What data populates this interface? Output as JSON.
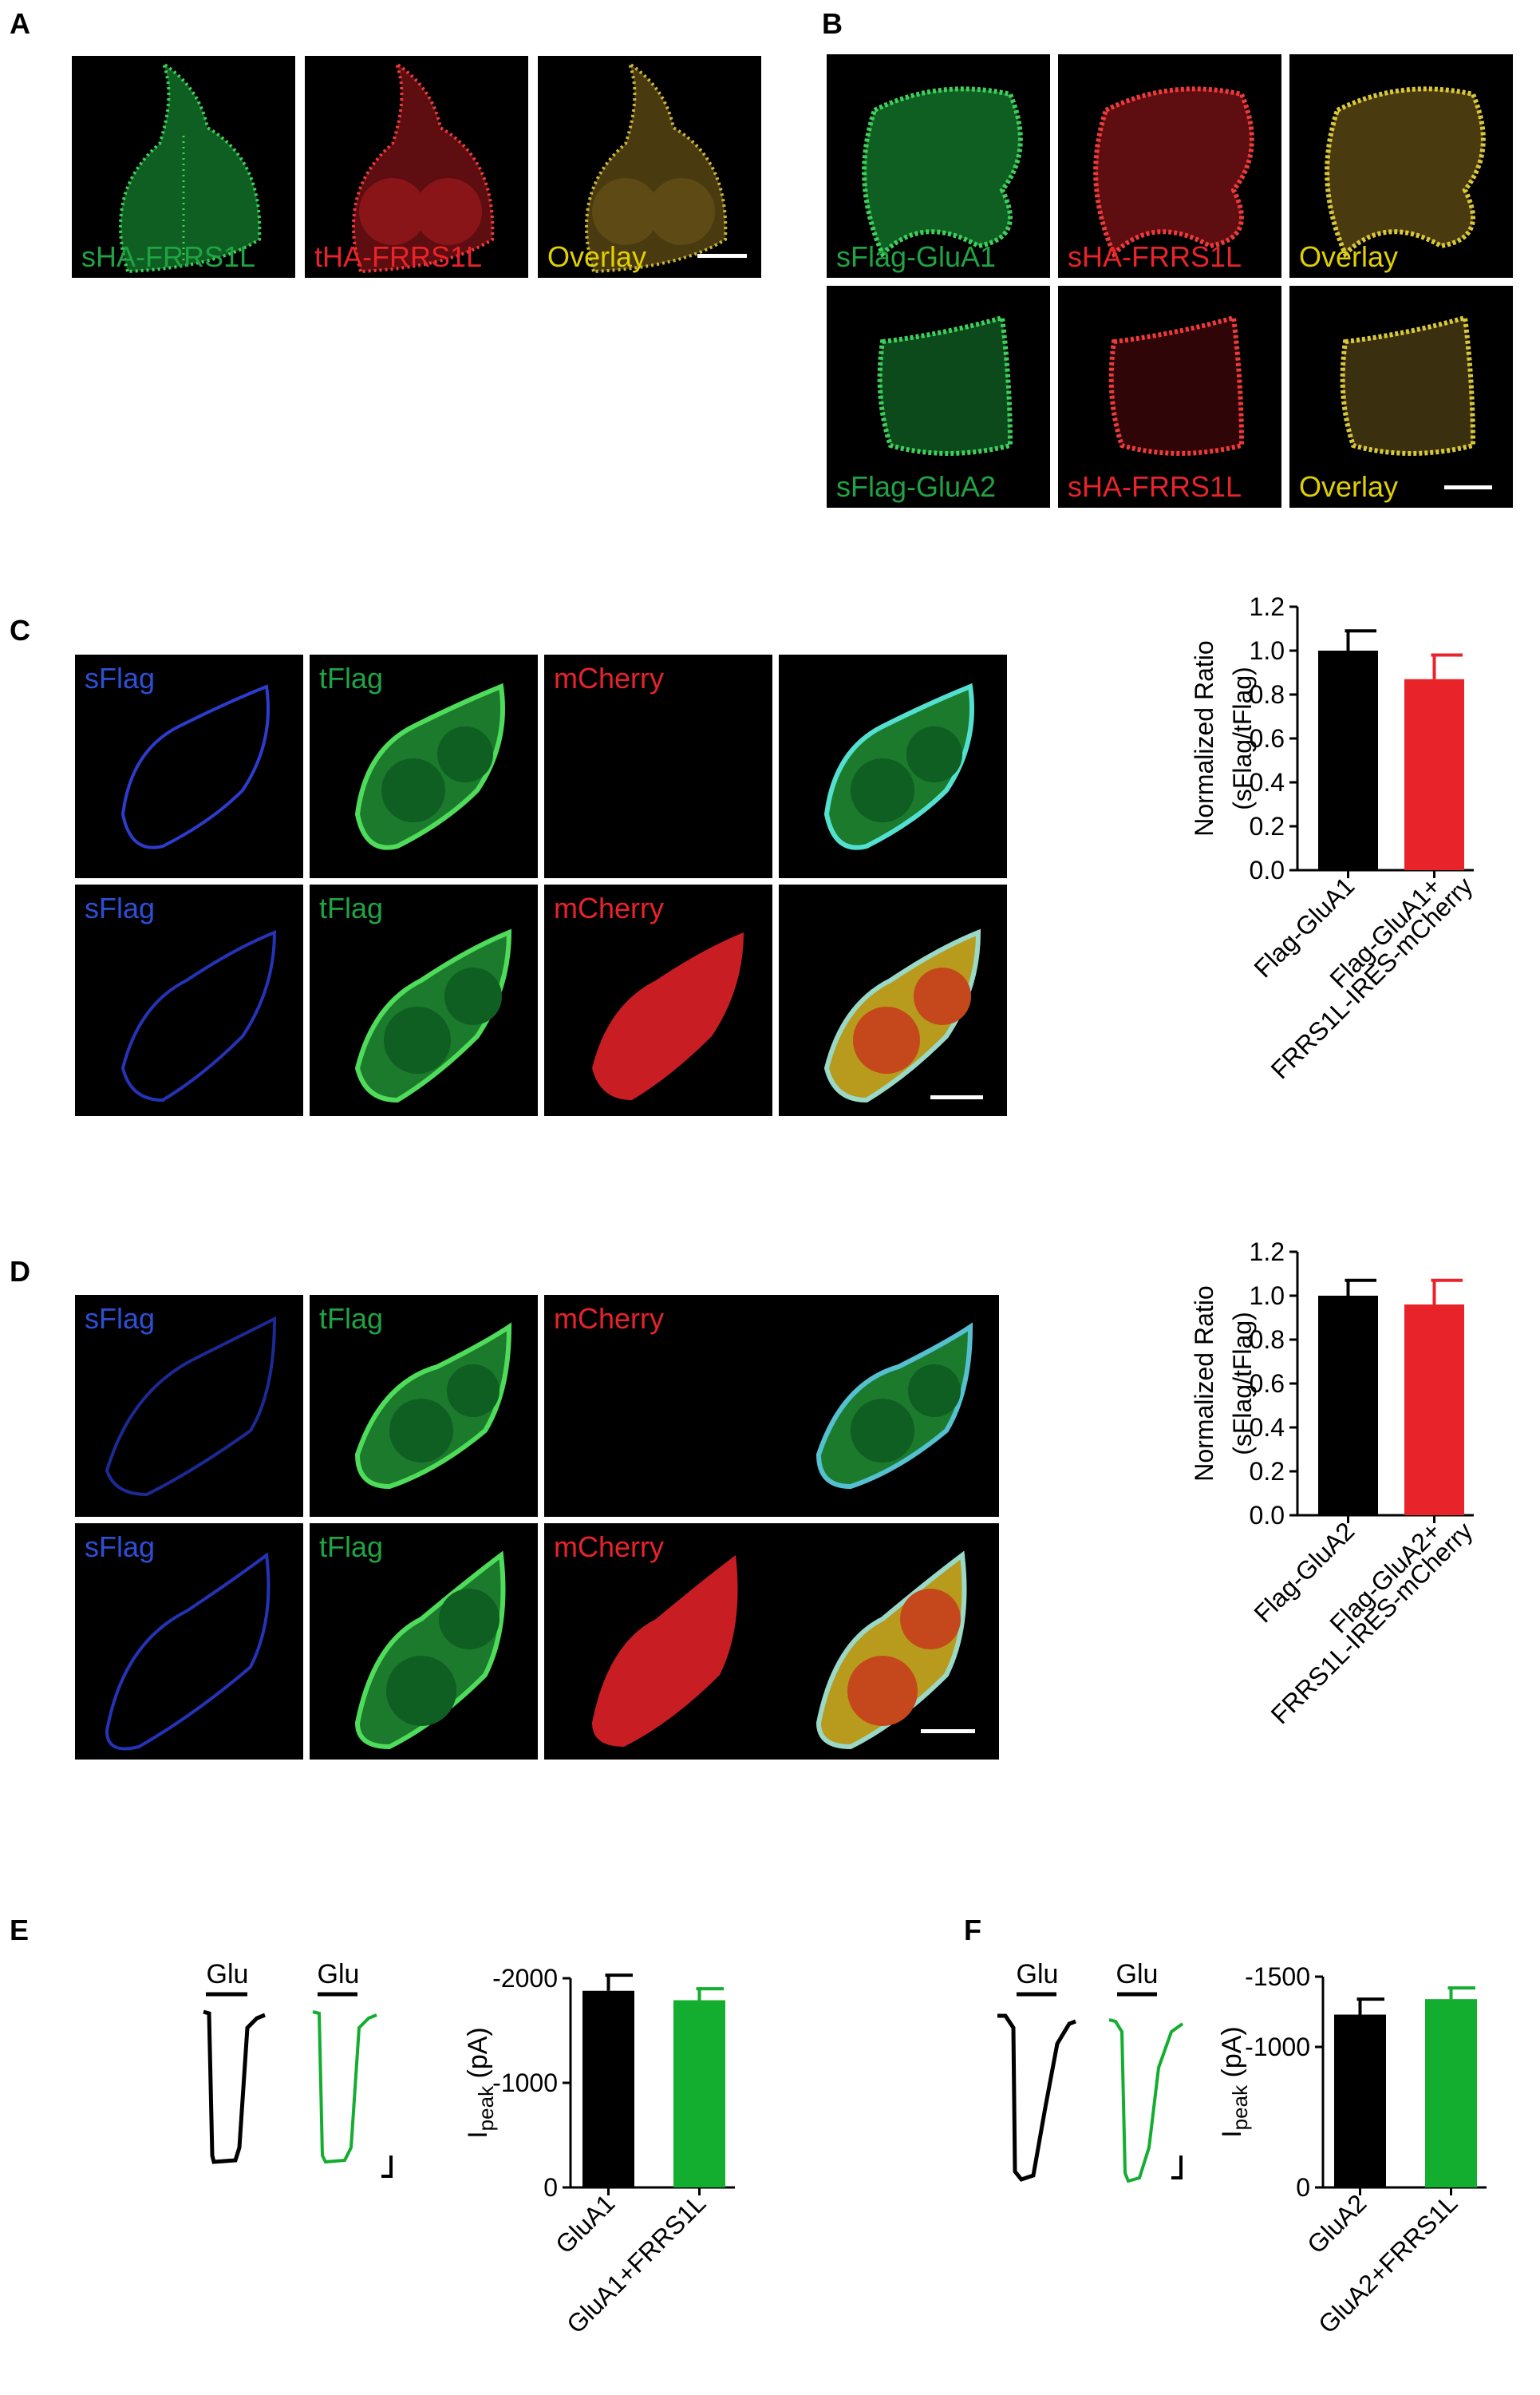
{
  "panels": {
    "A": "A",
    "B": "B",
    "C": "C",
    "D": "D",
    "E": "E",
    "F": "F"
  },
  "colors": {
    "green": "#1fa343",
    "red": "#e8232a",
    "yellow": "#e0d000",
    "blue": "#2d4fd6",
    "bar_black": "#000000",
    "bar_red": "#e8232a",
    "bar_green": "#13ad2f"
  },
  "labels": {
    "A": [
      "sHA-FRRS1L",
      "tHA-FRRS1L",
      "Overlay"
    ],
    "B_row1": [
      "sFlag-GluA1",
      "sHA-FRRS1L",
      "Overlay"
    ],
    "B_row2": [
      "sFlag-GluA2",
      "sHA-FRRS1L",
      "Overlay"
    ],
    "CD": [
      "sFlag",
      "tFlag",
      "mCherry"
    ]
  },
  "traces": {
    "glu": "Glu"
  },
  "chart_data": [
    {
      "id": "C",
      "type": "bar",
      "categories": [
        "Flag-GluA1",
        "Flag-GluA1+\nFRRS1L-IRES-mCherry"
      ],
      "values": [
        1.0,
        0.87
      ],
      "errors": [
        0.09,
        0.11
      ],
      "ylabel_line1": "Normalized Ratio",
      "ylabel_line2": "(sFlag/tFlag)",
      "ylim": [
        0,
        1.2
      ],
      "yticks": [
        "0.0",
        "0.2",
        "0.4",
        "0.6",
        "0.8",
        "1.0",
        "1.2"
      ],
      "colors": [
        "#000000",
        "#e8232a"
      ]
    },
    {
      "id": "D",
      "type": "bar",
      "categories": [
        "Flag-GluA2",
        "Flag-GluA2+\nFRRS1L-IRES-mCherry"
      ],
      "values": [
        1.0,
        0.96
      ],
      "errors": [
        0.07,
        0.11
      ],
      "ylabel_line1": "Normalized Ratio",
      "ylabel_line2": "(sFlag/tFlag)",
      "ylim": [
        0,
        1.2
      ],
      "yticks": [
        "0.0",
        "0.2",
        "0.4",
        "0.6",
        "0.8",
        "1.0",
        "1.2"
      ],
      "colors": [
        "#000000",
        "#e8232a"
      ]
    },
    {
      "id": "E",
      "type": "bar",
      "categories": [
        "GluA1",
        "GluA1+FRRS1L"
      ],
      "values": [
        -1880,
        -1790
      ],
      "errors": [
        150,
        110
      ],
      "ylabel": "Ipeak (pA)",
      "ylim": [
        0,
        -2000
      ],
      "yticks": [
        "0",
        "-1000",
        "-2000"
      ],
      "colors": [
        "#000000",
        "#13ad2f"
      ]
    },
    {
      "id": "F",
      "type": "bar",
      "categories": [
        "GluA2",
        "GluA2+FRRS1L"
      ],
      "values": [
        -1230,
        -1340
      ],
      "errors": [
        110,
        80
      ],
      "ylabel": "Ipeak (pA)",
      "ylim": [
        0,
        -1500
      ],
      "yticks": [
        "0",
        "-1000",
        "-1500"
      ],
      "colors": [
        "#000000",
        "#13ad2f"
      ]
    }
  ]
}
